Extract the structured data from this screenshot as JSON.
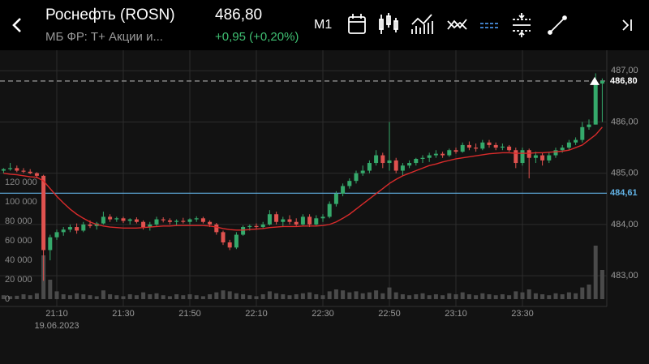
{
  "header": {
    "title": "Роснефть (ROSN)",
    "price": "486,80",
    "exchange": "МБ ФР: Т+ Акции и...",
    "change": "+0,95 (+0,20%)",
    "timeframe": "M1"
  },
  "chart_data": {
    "type": "candlestick",
    "date": "19.06.2023",
    "categories": [
      null,
      null,
      null,
      null,
      null,
      null,
      null,
      null,
      "21:10",
      null,
      null,
      null,
      null,
      null,
      null,
      null,
      null,
      null,
      "21:30",
      null,
      null,
      null,
      null,
      null,
      null,
      null,
      null,
      null,
      "21:50",
      null,
      null,
      null,
      null,
      null,
      null,
      null,
      null,
      null,
      "22:10",
      null,
      null,
      null,
      null,
      null,
      null,
      null,
      null,
      null,
      "22:30",
      null,
      null,
      null,
      null,
      null,
      null,
      null,
      null,
      null,
      "22:50",
      null,
      null,
      null,
      null,
      null,
      null,
      null,
      null,
      null,
      "23:10",
      null,
      null,
      null,
      null,
      null,
      null,
      null,
      null,
      null,
      "23:30",
      null,
      null,
      null,
      null,
      null,
      null,
      null,
      null,
      null,
      null,
      null,
      null
    ],
    "candles": [
      [
        485.05,
        485.1,
        485.0,
        485.08
      ],
      [
        485.08,
        485.2,
        485.05,
        485.1
      ],
      [
        485.1,
        485.15,
        485.02,
        485.05
      ],
      [
        485.05,
        485.1,
        485.0,
        485.03
      ],
      [
        485.03,
        485.08,
        484.98,
        485.0
      ],
      [
        485.0,
        485.02,
        484.9,
        484.95
      ],
      [
        484.95,
        484.97,
        482.9,
        483.5
      ],
      [
        483.5,
        483.8,
        483.3,
        483.75
      ],
      [
        483.75,
        483.9,
        483.7,
        483.85
      ],
      [
        483.85,
        483.95,
        483.78,
        483.9
      ],
      [
        483.9,
        484.0,
        483.85,
        483.95
      ],
      [
        483.95,
        484.02,
        483.82,
        483.88
      ],
      [
        483.88,
        484.05,
        483.85,
        484.0
      ],
      [
        484.0,
        484.08,
        483.93,
        483.97
      ],
      [
        483.97,
        484.05,
        483.9,
        484.02
      ],
      [
        484.02,
        484.25,
        484.0,
        484.15
      ],
      [
        484.15,
        484.2,
        484.05,
        484.1
      ],
      [
        484.1,
        484.15,
        484.05,
        484.12
      ],
      [
        484.12,
        484.15,
        484.03,
        484.07
      ],
      [
        484.07,
        484.12,
        484.0,
        484.1
      ],
      [
        484.1,
        484.14,
        484.02,
        484.05
      ],
      [
        484.05,
        484.08,
        483.9,
        483.95
      ],
      [
        483.95,
        484.05,
        483.88,
        484.0
      ],
      [
        484.0,
        484.15,
        483.97,
        484.1
      ],
      [
        484.1,
        484.14,
        484.04,
        484.08
      ],
      [
        484.08,
        484.12,
        484.0,
        484.05
      ],
      [
        484.05,
        484.1,
        483.98,
        484.07
      ],
      [
        484.07,
        484.13,
        484.02,
        484.05
      ],
      [
        484.05,
        484.12,
        484.0,
        484.1
      ],
      [
        484.1,
        484.16,
        484.05,
        484.12
      ],
      [
        484.12,
        484.15,
        484.02,
        484.05
      ],
      [
        484.05,
        484.08,
        483.95,
        484.0
      ],
      [
        484.0,
        484.03,
        483.8,
        483.85
      ],
      [
        483.85,
        483.88,
        483.6,
        483.65
      ],
      [
        483.65,
        483.7,
        483.5,
        483.55
      ],
      [
        483.55,
        483.85,
        483.52,
        483.8
      ],
      [
        483.8,
        483.98,
        483.78,
        483.95
      ],
      [
        483.95,
        484.0,
        483.88,
        483.97
      ],
      [
        483.97,
        484.02,
        483.9,
        483.95
      ],
      [
        483.95,
        484.05,
        483.92,
        484.0
      ],
      [
        484.0,
        484.28,
        483.98,
        484.2
      ],
      [
        484.2,
        484.25,
        484.0,
        484.05
      ],
      [
        484.05,
        484.15,
        483.95,
        484.1
      ],
      [
        484.1,
        484.18,
        484.0,
        484.05
      ],
      [
        484.05,
        484.12,
        483.97,
        484.0
      ],
      [
        484.0,
        484.2,
        483.98,
        484.15
      ],
      [
        484.15,
        484.2,
        483.95,
        484.0
      ],
      [
        484.0,
        484.18,
        483.98,
        484.12
      ],
      [
        484.12,
        484.2,
        484.05,
        484.15
      ],
      [
        484.15,
        484.45,
        484.12,
        484.4
      ],
      [
        484.4,
        484.65,
        484.35,
        484.6
      ],
      [
        484.6,
        484.8,
        484.55,
        484.75
      ],
      [
        484.75,
        484.9,
        484.7,
        484.85
      ],
      [
        484.85,
        485.05,
        484.8,
        485.0
      ],
      [
        485.0,
        485.15,
        484.95,
        485.05
      ],
      [
        485.05,
        485.25,
        485.0,
        485.2
      ],
      [
        485.2,
        485.45,
        485.15,
        485.35
      ],
      [
        485.35,
        485.4,
        485.1,
        485.2
      ],
      [
        485.2,
        486.0,
        485.05,
        485.25
      ],
      [
        485.25,
        485.3,
        485.0,
        485.05
      ],
      [
        485.05,
        485.2,
        484.95,
        485.15
      ],
      [
        485.15,
        485.25,
        485.1,
        485.2
      ],
      [
        485.2,
        485.3,
        485.15,
        485.28
      ],
      [
        485.28,
        485.35,
        485.2,
        485.3
      ],
      [
        485.3,
        485.4,
        485.22,
        485.35
      ],
      [
        485.35,
        485.45,
        485.3,
        485.38
      ],
      [
        485.38,
        485.42,
        485.3,
        485.35
      ],
      [
        485.35,
        485.48,
        485.32,
        485.45
      ],
      [
        485.45,
        485.5,
        485.38,
        485.42
      ],
      [
        485.42,
        485.6,
        485.4,
        485.55
      ],
      [
        485.55,
        485.62,
        485.45,
        485.5
      ],
      [
        485.5,
        485.58,
        485.42,
        485.48
      ],
      [
        485.48,
        485.65,
        485.45,
        485.6
      ],
      [
        485.6,
        485.65,
        485.5,
        485.55
      ],
      [
        485.55,
        485.6,
        485.45,
        485.5
      ],
      [
        485.5,
        485.58,
        485.45,
        485.52
      ],
      [
        485.52,
        485.55,
        485.42,
        485.45
      ],
      [
        485.45,
        485.5,
        485.1,
        485.2
      ],
      [
        485.2,
        485.5,
        485.15,
        485.45
      ],
      [
        485.45,
        485.48,
        484.9,
        485.3
      ],
      [
        485.3,
        485.42,
        485.2,
        485.35
      ],
      [
        485.35,
        485.4,
        485.15,
        485.25
      ],
      [
        485.25,
        485.4,
        485.2,
        485.35
      ],
      [
        485.35,
        485.5,
        485.3,
        485.45
      ],
      [
        485.45,
        485.55,
        485.4,
        485.5
      ],
      [
        485.5,
        485.65,
        485.45,
        485.6
      ],
      [
        485.6,
        485.7,
        485.55,
        485.65
      ],
      [
        485.65,
        486.0,
        485.6,
        485.9
      ],
      [
        485.9,
        486.05,
        485.85,
        485.95
      ],
      [
        485.95,
        486.95,
        485.95,
        486.75
      ],
      [
        486.75,
        486.85,
        486.0,
        486.8
      ]
    ],
    "up_color": "#35a96b",
    "down_color": "#e0524f",
    "ylim": [
      482.4,
      487.4
    ],
    "yticks": [
      {
        "value": 483,
        "label": "483,00"
      },
      {
        "value": 484,
        "label": "484,00"
      },
      {
        "value": 485,
        "label": "485,00"
      },
      {
        "value": 486,
        "label": "486,00"
      },
      {
        "value": 487,
        "label": "487,00"
      }
    ],
    "grid": true,
    "volume": {
      "color": "#4a4a4a",
      "ylim": [
        0,
        250000
      ],
      "yticks": [
        0,
        {
          "value": 20000,
          "label": "20 000"
        },
        {
          "value": 40000,
          "label": "40 000"
        },
        {
          "value": 60000,
          "label": "60 000"
        },
        {
          "value": 80000,
          "label": "80 000"
        },
        {
          "value": 100000,
          "label": "100 000"
        },
        {
          "value": 120000,
          "label": "120 000"
        }
      ],
      "values": [
        4000,
        3000,
        3500,
        5000,
        4000,
        6000,
        45000,
        20000,
        8000,
        5000,
        4000,
        6000,
        5000,
        4000,
        3000,
        9000,
        5000,
        4000,
        3000,
        5000,
        4000,
        7000,
        5000,
        6000,
        4000,
        3000,
        5000,
        4000,
        5000,
        4000,
        3000,
        5000,
        7000,
        9000,
        8000,
        6000,
        5000,
        4000,
        3000,
        5000,
        8000,
        6000,
        5000,
        4000,
        5000,
        6000,
        7000,
        5000,
        4000,
        8000,
        10000,
        9000,
        7000,
        8000,
        6000,
        7000,
        9000,
        6000,
        12000,
        7000,
        5000,
        4000,
        5000,
        6000,
        4000,
        5000,
        4000,
        6000,
        5000,
        7000,
        5000,
        4000,
        6000,
        5000,
        4000,
        5000,
        4000,
        8000,
        7000,
        10000,
        6000,
        5000,
        4000,
        6000,
        5000,
        7000,
        6000,
        12000,
        15000,
        55000,
        30000
      ]
    },
    "moving_average": {
      "color": "#d92b2b",
      "values": [
        485.0,
        484.98,
        484.97,
        484.95,
        484.93,
        484.92,
        484.85,
        484.7,
        484.55,
        484.42,
        484.3,
        484.2,
        484.12,
        484.05,
        484.0,
        483.97,
        483.95,
        483.94,
        483.93,
        483.93,
        483.93,
        483.94,
        483.95,
        483.96,
        483.97,
        483.97,
        483.98,
        483.98,
        483.98,
        483.98,
        483.98,
        483.97,
        483.95,
        483.92,
        483.9,
        483.89,
        483.89,
        483.9,
        483.91,
        483.92,
        483.94,
        483.95,
        483.96,
        483.96,
        483.96,
        483.97,
        483.97,
        483.97,
        483.98,
        484.0,
        484.05,
        484.12,
        484.2,
        484.3,
        484.4,
        484.5,
        484.6,
        484.7,
        484.8,
        484.88,
        484.95,
        485.0,
        485.05,
        485.1,
        485.15,
        485.18,
        485.22,
        485.25,
        485.28,
        485.3,
        485.32,
        485.34,
        485.36,
        485.38,
        485.39,
        485.4,
        485.4,
        485.39,
        485.39,
        485.39,
        485.4,
        485.4,
        485.41,
        485.42,
        485.43,
        485.45,
        485.5,
        485.55,
        485.65,
        485.75,
        485.9
      ]
    },
    "price_lines": [
      {
        "value": 486.8,
        "label": "486,80",
        "color": "#aaaaaa",
        "label_color": "#ffffff",
        "dashed": true
      },
      {
        "value": 484.61,
        "label": "484,61",
        "color": "#62b3e6",
        "label_color": "#62b3e6",
        "dashed": false
      }
    ]
  }
}
